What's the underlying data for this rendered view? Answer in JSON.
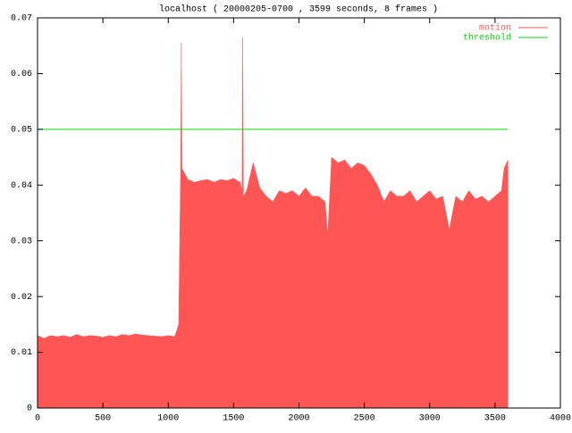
{
  "chart_data": {
    "type": "area",
    "title": "localhost ( 20000205-0700 , 3599 seconds, 8 frames )",
    "x": [
      0,
      50,
      100,
      150,
      200,
      250,
      300,
      350,
      400,
      450,
      500,
      550,
      600,
      650,
      700,
      750,
      800,
      850,
      900,
      950,
      1000,
      1050,
      1080,
      1095,
      1100,
      1105,
      1150,
      1200,
      1250,
      1300,
      1350,
      1400,
      1450,
      1500,
      1550,
      1565,
      1570,
      1575,
      1600,
      1650,
      1700,
      1750,
      1800,
      1850,
      1900,
      1950,
      2000,
      2050,
      2100,
      2150,
      2200,
      2220,
      2250,
      2300,
      2350,
      2400,
      2450,
      2500,
      2550,
      2600,
      2650,
      2700,
      2750,
      2800,
      2850,
      2900,
      2950,
      3000,
      3050,
      3100,
      3150,
      3200,
      3250,
      3300,
      3350,
      3400,
      3450,
      3500,
      3550,
      3570,
      3599
    ],
    "series": [
      {
        "name": "motion",
        "color": "#ff5555",
        "values": [
          0.013,
          0.0125,
          0.013,
          0.0128,
          0.013,
          0.0127,
          0.0132,
          0.0128,
          0.013,
          0.0129,
          0.0127,
          0.013,
          0.0128,
          0.0132,
          0.013,
          0.0133,
          0.0131,
          0.013,
          0.0129,
          0.0128,
          0.013,
          0.0128,
          0.015,
          0.043,
          0.0655,
          0.043,
          0.041,
          0.0405,
          0.0408,
          0.041,
          0.0405,
          0.041,
          0.0408,
          0.0412,
          0.0405,
          0.039,
          0.0665,
          0.038,
          0.039,
          0.044,
          0.0395,
          0.038,
          0.037,
          0.039,
          0.0385,
          0.039,
          0.038,
          0.0395,
          0.038,
          0.038,
          0.037,
          0.031,
          0.045,
          0.044,
          0.0445,
          0.043,
          0.044,
          0.0435,
          0.042,
          0.04,
          0.037,
          0.039,
          0.038,
          0.038,
          0.039,
          0.037,
          0.038,
          0.039,
          0.0375,
          0.038,
          0.032,
          0.038,
          0.037,
          0.039,
          0.0375,
          0.038,
          0.037,
          0.038,
          0.039,
          0.043,
          0.0445
        ]
      },
      {
        "name": "threshold",
        "color": "#00dd00",
        "x": [
          0,
          3599
        ],
        "values": [
          0.05,
          0.05
        ]
      }
    ],
    "xlim": [
      0,
      4000
    ],
    "xticks": [
      0,
      500,
      1000,
      1500,
      2000,
      2500,
      3000,
      3500,
      4000
    ],
    "ylim": [
      0,
      0.07
    ],
    "yticks": [
      0,
      0.01,
      0.02,
      0.03,
      0.04,
      0.05,
      0.06,
      0.07
    ],
    "legend": "top-right"
  }
}
